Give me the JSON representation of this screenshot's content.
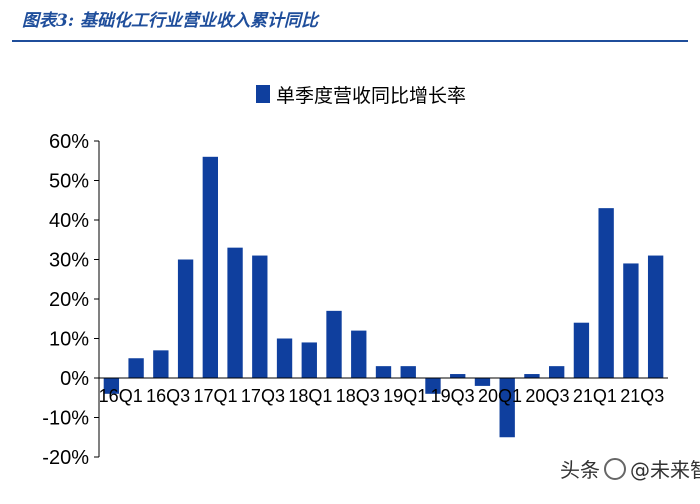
{
  "figure_title": "图表3: 基础化工行业营业收入累计同比",
  "colors": {
    "bar": "#0f3f9e",
    "title": "#1f4e9b",
    "axis": "#000000"
  },
  "watermark": {
    "prefix": "头条",
    "name": "@未来智库"
  },
  "chart_data": {
    "type": "bar",
    "title": "",
    "legend": [
      "单季度营收同比增长率"
    ],
    "legend_position": "top",
    "categories": [
      "16Q1",
      "16Q3",
      "17Q1",
      "17Q3",
      "18Q1",
      "18Q3",
      "19Q1",
      "19Q3",
      "20Q1",
      "20Q3",
      "21Q1",
      "21Q3"
    ],
    "tick_labels_shown": [
      "16Q1",
      "16Q3",
      "17Q1",
      "17Q3",
      "18Q1",
      "18Q3",
      "19Q1",
      "19Q3",
      "20Q1",
      "20Q3",
      "21Q1",
      "21Q3"
    ],
    "series": [
      {
        "name": "单季度营收同比增长率",
        "x": [
          "16Q1",
          "16Q2",
          "16Q3",
          "16Q4",
          "17Q1",
          "17Q2",
          "17Q3",
          "17Q4",
          "18Q1",
          "18Q2",
          "18Q3",
          "18Q4",
          "19Q1",
          "19Q2",
          "19Q3",
          "19Q4",
          "20Q1",
          "20Q2",
          "20Q3",
          "20Q4",
          "21Q1",
          "21Q2",
          "21Q3"
        ],
        "values": [
          -4,
          5,
          7,
          30,
          56,
          33,
          31,
          10,
          9,
          17,
          12,
          3,
          3,
          -4,
          1,
          -2,
          -15,
          1,
          3,
          14,
          43,
          29,
          31
        ]
      }
    ],
    "y_ticks": [
      "60%",
      "50%",
      "40%",
      "30%",
      "20%",
      "10%",
      "0%",
      "-10%",
      "-20%"
    ],
    "ylim": [
      -20,
      60
    ],
    "grid": false
  }
}
